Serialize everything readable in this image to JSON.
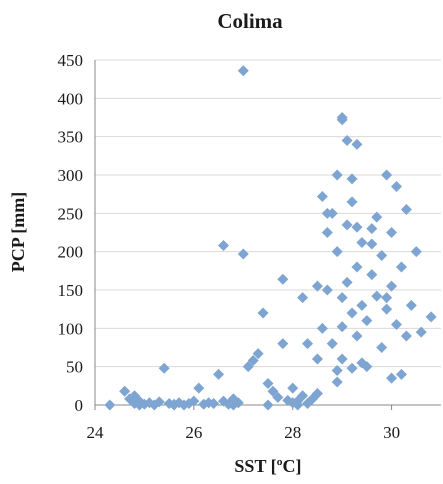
{
  "chart_data": {
    "type": "scatter",
    "title": "Colima",
    "xlabel": "SST [ºC]",
    "ylabel": "PCP [mm]",
    "xlim": [
      24,
      31
    ],
    "ylim": [
      0,
      450
    ],
    "xticks": [
      24,
      26,
      28,
      30
    ],
    "yticks": [
      0,
      50,
      100,
      150,
      200,
      250,
      300,
      350,
      400,
      450
    ],
    "grid": "horizontal",
    "marker": "diamond",
    "colors": {
      "marker": "#7ea5d1",
      "grid": "#d9d9d9",
      "axis": "#888888"
    },
    "series": [
      {
        "name": "",
        "points": [
          [
            24.3,
            0
          ],
          [
            24.6,
            18
          ],
          [
            24.7,
            8
          ],
          [
            24.8,
            12
          ],
          [
            24.8,
            2
          ],
          [
            24.9,
            5
          ],
          [
            25.0,
            1
          ],
          [
            25.1,
            3
          ],
          [
            25.2,
            0
          ],
          [
            25.3,
            4
          ],
          [
            25.4,
            48
          ],
          [
            25.5,
            2
          ],
          [
            25.6,
            1
          ],
          [
            25.7,
            3
          ],
          [
            25.8,
            0
          ],
          [
            25.9,
            2
          ],
          [
            26.0,
            5
          ],
          [
            26.1,
            22
          ],
          [
            26.2,
            1
          ],
          [
            26.3,
            3
          ],
          [
            26.4,
            2
          ],
          [
            26.5,
            40
          ],
          [
            26.6,
            208
          ],
          [
            26.6,
            5
          ],
          [
            26.7,
            1
          ],
          [
            26.8,
            8
          ],
          [
            26.9,
            3
          ],
          [
            27.0,
            197
          ],
          [
            27.0,
            436
          ],
          [
            27.1,
            50
          ],
          [
            27.2,
            58
          ],
          [
            27.3,
            67
          ],
          [
            27.4,
            120
          ],
          [
            27.5,
            28
          ],
          [
            27.6,
            18
          ],
          [
            27.7,
            10
          ],
          [
            27.8,
            80
          ],
          [
            27.8,
            164
          ],
          [
            27.9,
            6
          ],
          [
            28.0,
            3
          ],
          [
            28.0,
            22
          ],
          [
            28.1,
            5
          ],
          [
            28.2,
            12
          ],
          [
            28.3,
            2
          ],
          [
            28.4,
            8
          ],
          [
            28.5,
            15
          ],
          [
            28.5,
            60
          ],
          [
            28.6,
            100
          ],
          [
            28.6,
            272
          ],
          [
            28.7,
            150
          ],
          [
            28.7,
            225
          ],
          [
            28.8,
            80
          ],
          [
            28.8,
            250
          ],
          [
            28.9,
            30
          ],
          [
            28.9,
            200
          ],
          [
            28.9,
            300
          ],
          [
            29.0,
            372
          ],
          [
            29.0,
            375
          ],
          [
            29.0,
            140
          ],
          [
            29.0,
            60
          ],
          [
            29.1,
            160
          ],
          [
            29.1,
            235
          ],
          [
            29.1,
            345
          ],
          [
            29.2,
            120
          ],
          [
            29.2,
            265
          ],
          [
            29.2,
            295
          ],
          [
            29.3,
            90
          ],
          [
            29.3,
            180
          ],
          [
            29.3,
            340
          ],
          [
            29.4,
            130
          ],
          [
            29.4,
            212
          ],
          [
            29.5,
            50
          ],
          [
            29.5,
            110
          ],
          [
            29.6,
            170
          ],
          [
            29.6,
            230
          ],
          [
            29.7,
            142
          ],
          [
            29.7,
            245
          ],
          [
            29.8,
            75
          ],
          [
            29.8,
            195
          ],
          [
            29.9,
            125
          ],
          [
            29.9,
            300
          ],
          [
            30.0,
            35
          ],
          [
            30.0,
            155
          ],
          [
            30.1,
            105
          ],
          [
            30.1,
            285
          ],
          [
            30.2,
            40
          ],
          [
            30.2,
            180
          ],
          [
            30.3,
            90
          ],
          [
            30.3,
            255
          ],
          [
            30.4,
            130
          ],
          [
            30.5,
            200
          ],
          [
            30.6,
            95
          ],
          [
            30.8,
            115
          ],
          [
            28.3,
            80
          ],
          [
            28.7,
            250
          ],
          [
            29.0,
            102
          ],
          [
            29.4,
            55
          ],
          [
            29.9,
            140
          ],
          [
            28.9,
            45
          ],
          [
            29.2,
            48
          ],
          [
            28.1,
            0
          ],
          [
            27.5,
            0
          ],
          [
            26.8,
            0
          ],
          [
            25.6,
            0
          ],
          [
            24.9,
            0
          ],
          [
            28.2,
            140
          ],
          [
            28.5,
            155
          ],
          [
            29.6,
            210
          ],
          [
            30.0,
            225
          ],
          [
            29.3,
            232
          ]
        ]
      }
    ]
  }
}
